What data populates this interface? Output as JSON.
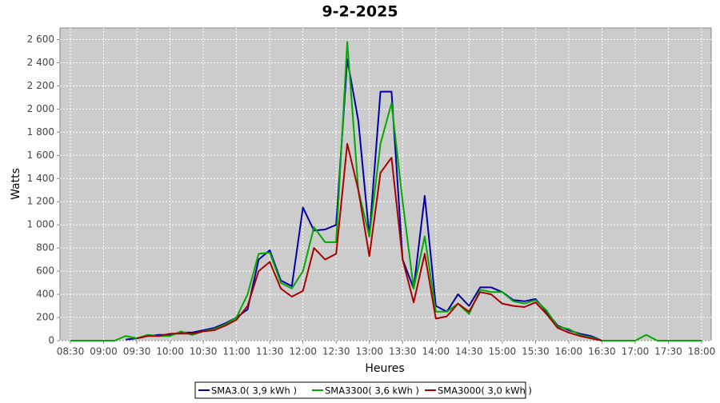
{
  "chart_data": {
    "type": "line",
    "title": "9-2-2025",
    "x_label": "Heures",
    "y_label": "Watts",
    "categories": [
      "08:30",
      null,
      null,
      "09:00",
      null,
      null,
      "09:30",
      null,
      null,
      "10:00",
      null,
      null,
      "10:30",
      null,
      null,
      "11:00",
      null,
      null,
      "11:30",
      null,
      null,
      "12:00",
      null,
      null,
      "12:30",
      null,
      null,
      "13:00",
      null,
      null,
      "13:30",
      null,
      null,
      "14:00",
      null,
      null,
      "14:30",
      null,
      null,
      "15:00",
      null,
      null,
      "15:30",
      null,
      null,
      "16:00",
      null,
      null,
      "16:30",
      null,
      null,
      "17:00",
      null,
      null,
      "17:30",
      null,
      null,
      "18:00"
    ],
    "series": [
      {
        "name": "SMA3.0( 3,9 kWh )",
        "color": "#0000aa",
        "values": [
          null,
          null,
          null,
          null,
          null,
          10,
          20,
          40,
          50,
          50,
          70,
          70,
          90,
          110,
          150,
          200,
          270,
          700,
          780,
          520,
          470,
          1150,
          950,
          960,
          1000,
          2430,
          1900,
          900,
          2150,
          2150,
          700,
          450,
          1250,
          300,
          250,
          400,
          300,
          460,
          460,
          420,
          350,
          340,
          360,
          250,
          130,
          90,
          60,
          40,
          0,
          null,
          null,
          null,
          null,
          null,
          null,
          null,
          null,
          null
        ]
      },
      {
        "name": "SMA3300( 3,6 kWh )",
        "color": "#00aa00",
        "values": [
          0,
          0,
          0,
          0,
          0,
          40,
          20,
          50,
          40,
          40,
          80,
          50,
          80,
          100,
          140,
          200,
          400,
          750,
          760,
          500,
          450,
          600,
          980,
          850,
          850,
          2580,
          1300,
          900,
          1700,
          2050,
          1200,
          450,
          900,
          250,
          250,
          320,
          230,
          440,
          420,
          420,
          340,
          320,
          350,
          260,
          120,
          100,
          50,
          30,
          0,
          0,
          0,
          0,
          50,
          0,
          0,
          0,
          0,
          0
        ]
      },
      {
        "name": "SMA3000( 3,0 kWh )",
        "color": "#aa0000",
        "values": [
          null,
          null,
          null,
          null,
          null,
          null,
          20,
          40,
          40,
          60,
          60,
          60,
          80,
          90,
          130,
          180,
          300,
          600,
          680,
          450,
          380,
          430,
          800,
          700,
          750,
          1700,
          1300,
          730,
          1450,
          1580,
          700,
          330,
          750,
          190,
          210,
          320,
          250,
          420,
          400,
          320,
          300,
          290,
          330,
          230,
          110,
          70,
          40,
          20,
          0,
          null,
          null,
          null,
          null,
          null,
          null,
          null,
          null,
          null
        ]
      }
    ],
    "ylim": [
      0,
      2700
    ],
    "yticks": [
      0,
      200,
      400,
      600,
      800,
      {
        "value": 1000,
        "label": "1 000"
      },
      {
        "value": 1200,
        "label": "1 200"
      },
      {
        "value": 1400,
        "label": "1 400"
      },
      {
        "value": 1600,
        "label": "1 600"
      },
      {
        "value": 1800,
        "label": "1 800"
      },
      {
        "value": 2000,
        "label": "2 000"
      },
      {
        "value": 2200,
        "label": "2 200"
      },
      {
        "value": 2400,
        "label": "2 400"
      },
      {
        "value": 2600,
        "label": "2 600"
      }
    ],
    "grid": true,
    "legend": "bottom"
  }
}
